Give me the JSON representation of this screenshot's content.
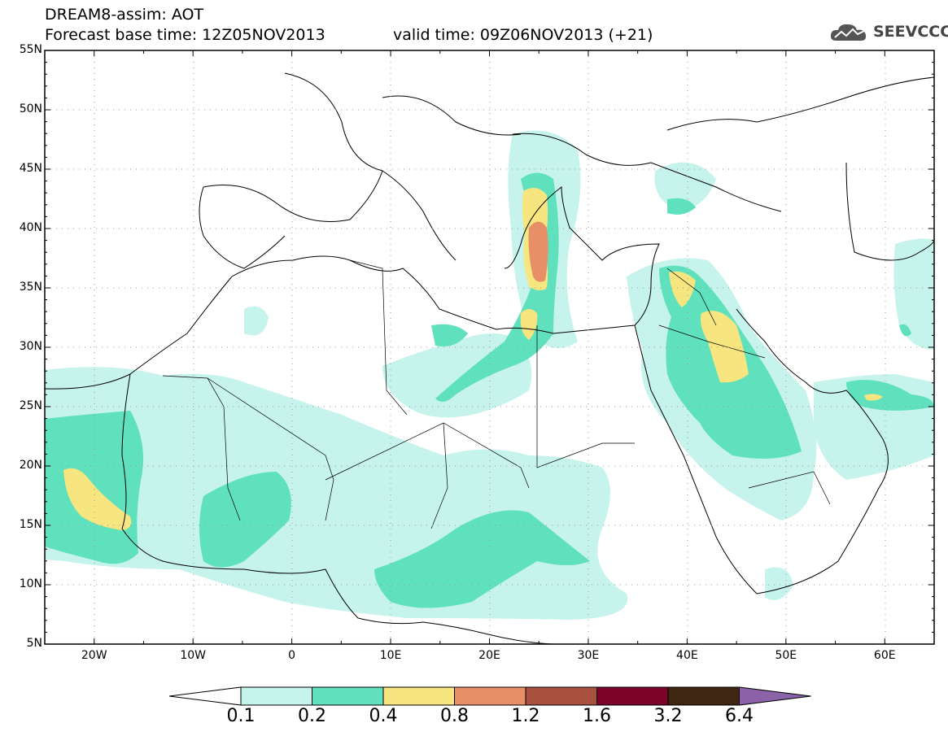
{
  "header": {
    "line1": "DREAM8-assim: AOT",
    "line2": "Forecast base time: 12Z05NOV2013",
    "valid": "valid time: 09Z06NOV2013 (+21)",
    "logo_text": "SEEVCCC"
  },
  "map": {
    "lat_labels": [
      "55N",
      "50N",
      "45N",
      "40N",
      "35N",
      "30N",
      "25N",
      "20N",
      "15N",
      "10N",
      "5N"
    ],
    "lon_labels": [
      "20W",
      "10W",
      "0",
      "10E",
      "20E",
      "30E",
      "40E",
      "50E",
      "60E"
    ],
    "lon_range": [
      -25,
      65
    ],
    "lat_range": [
      5,
      55
    ]
  },
  "colorbar": {
    "levels": [
      "0.1",
      "0.2",
      "0.4",
      "0.8",
      "1.2",
      "1.6",
      "3.2",
      "6.4"
    ],
    "colors": [
      "#ffffff",
      "#c6f3ec",
      "#5fe1bd",
      "#f7e57f",
      "#e98f68",
      "#a9503f",
      "#7c0428",
      "#3e2613",
      "#8c63a9"
    ]
  }
}
